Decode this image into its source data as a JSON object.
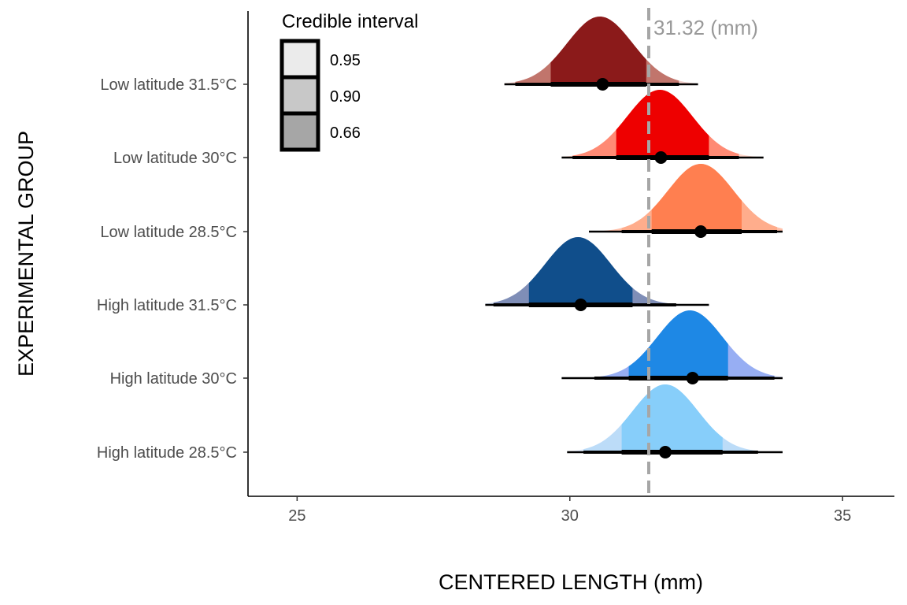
{
  "chart_data": {
    "type": "halfeye",
    "xlabel": "CENTERED LENGTH (mm)",
    "ylabel": "EXPERIMENTAL GROUP",
    "xlim": [
      24.1,
      35.95
    ],
    "x_ticks": [
      25,
      30,
      35
    ],
    "reference_line": {
      "value": 31.32,
      "label": "31.32 (mm)",
      "color": "#a6a6a6"
    },
    "legend": {
      "title": "Credible interval",
      "position": "top-left",
      "entries": [
        {
          "label": "0.95",
          "fill": "#ebebeb"
        },
        {
          "label": "0.90",
          "fill": "#c8c8c8"
        },
        {
          "label": "0.66",
          "fill": "#a6a6a6"
        }
      ]
    },
    "groups": [
      {
        "label": "Low latitude 31.5°C",
        "median": 30.6,
        "mode": 30.55,
        "sd": 0.6,
        "ci66": [
          29.65,
          31.4
        ],
        "ci90": [
          29.0,
          32.0
        ],
        "ci95": [
          28.8,
          32.35
        ],
        "colors": [
          "#f2cfca",
          "#c1756c",
          "#8b1a1a"
        ]
      },
      {
        "label": "Low latitude 30°C",
        "median": 31.67,
        "mode": 31.65,
        "sd": 0.6,
        "ci66": [
          30.85,
          32.55
        ],
        "ci90": [
          30.05,
          33.1
        ],
        "ci95": [
          29.85,
          33.55
        ],
        "colors": [
          "#ffd9cc",
          "#ff8a74",
          "#ee0000"
        ]
      },
      {
        "label": "Low latitude 28.5°C",
        "median": 32.4,
        "mode": 32.4,
        "sd": 0.6,
        "ci66": [
          31.5,
          33.15
        ],
        "ci90": [
          30.95,
          33.8
        ],
        "ci95": [
          30.35,
          33.9
        ],
        "colors": [
          "#ffc0aa",
          "#ffad8c",
          "#ff7f50"
        ]
      },
      {
        "label": "High latitude 31.5°C",
        "median": 30.2,
        "mode": 30.15,
        "sd": 0.6,
        "ci66": [
          29.25,
          31.15
        ],
        "ci90": [
          28.6,
          31.95
        ],
        "ci95": [
          28.45,
          32.55
        ],
        "colors": [
          "#d3dcf0",
          "#7f8eb7",
          "#104e8b"
        ]
      },
      {
        "label": "High latitude 30°C",
        "median": 32.25,
        "mode": 32.2,
        "sd": 0.6,
        "ci66": [
          31.08,
          32.9
        ],
        "ci90": [
          30.45,
          33.75
        ],
        "ci95": [
          29.85,
          33.9
        ],
        "colors": [
          "#dbe2fb",
          "#97aef3",
          "#1e88e5"
        ]
      },
      {
        "label": "High latitude 28.5°C",
        "median": 31.75,
        "mode": 31.75,
        "sd": 0.6,
        "ci66": [
          30.95,
          32.8
        ],
        "ci90": [
          30.25,
          33.45
        ],
        "ci95": [
          29.95,
          33.9
        ],
        "colors": [
          "#e6efff",
          "#bcdcf8",
          "#87cefa"
        ]
      }
    ]
  }
}
